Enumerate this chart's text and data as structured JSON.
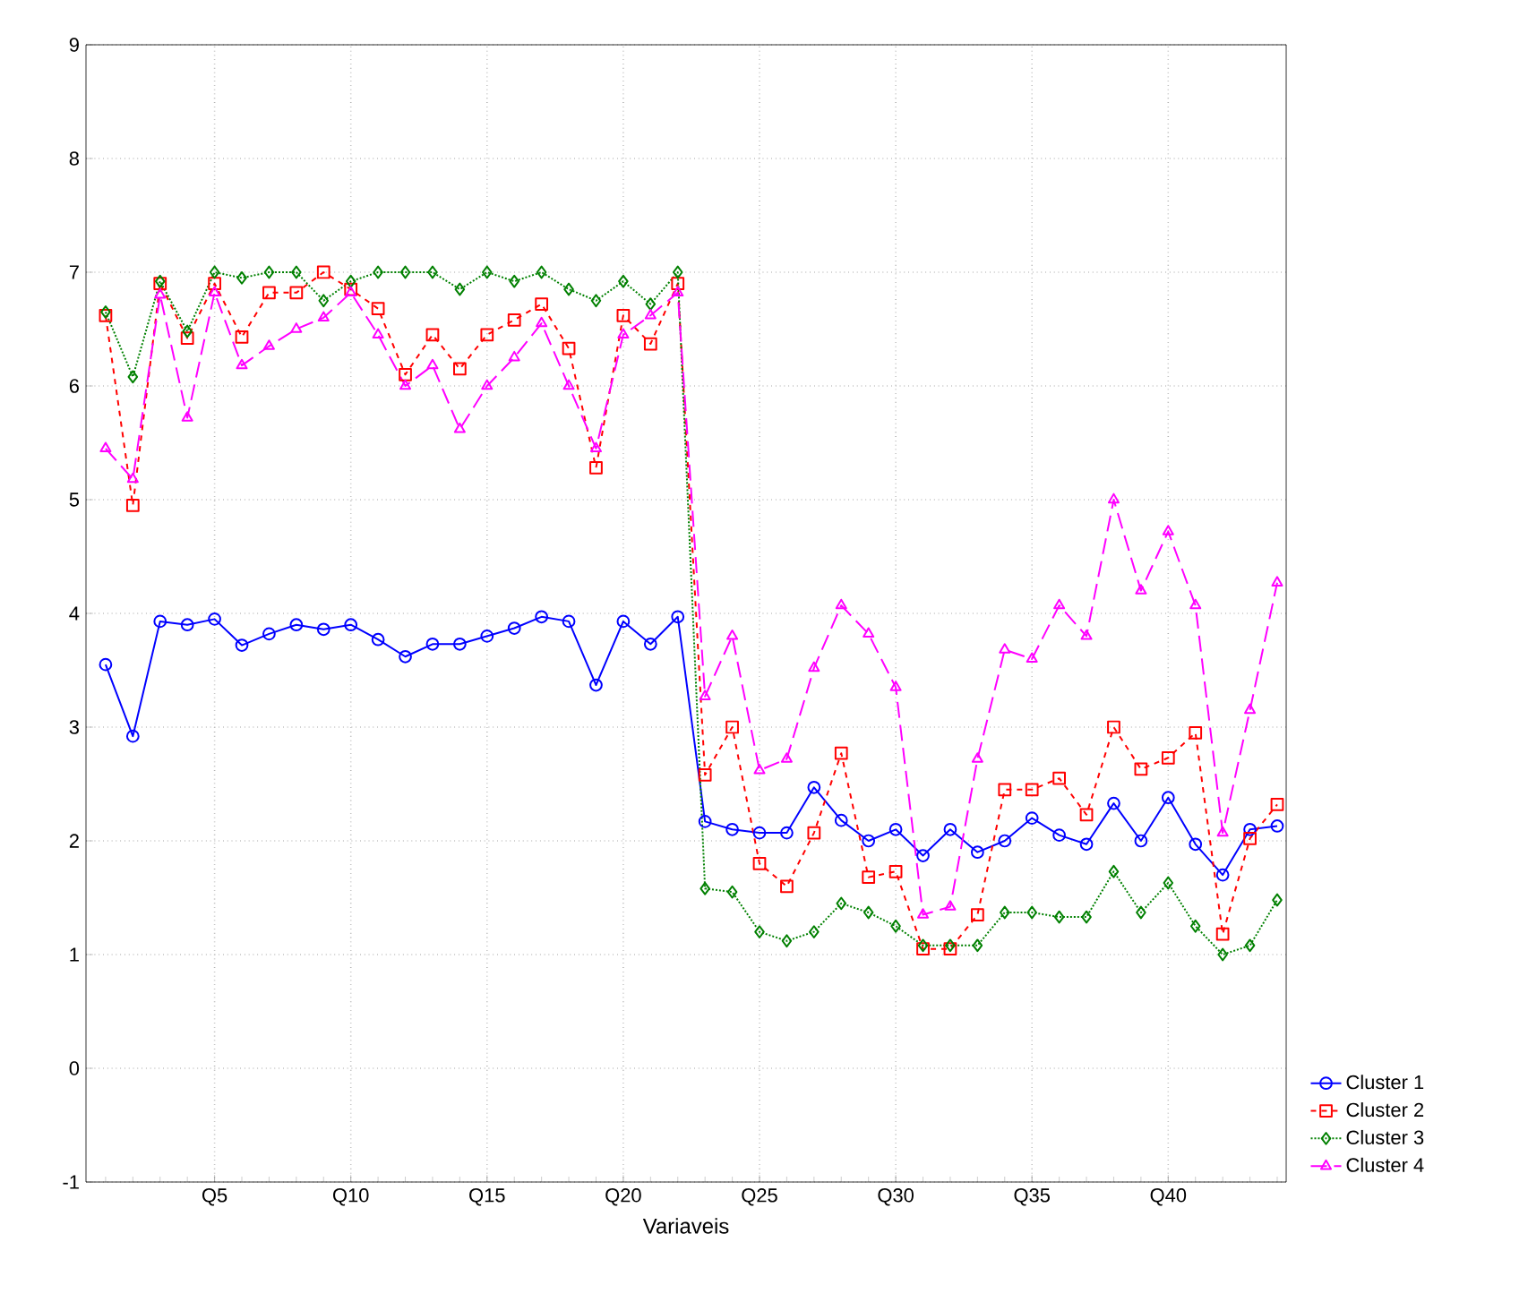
{
  "chart_data": {
    "type": "line",
    "xlabel": "Variaveis",
    "categories": [
      null,
      null,
      null,
      null,
      "Q5",
      null,
      null,
      null,
      null,
      "Q10",
      null,
      null,
      null,
      null,
      "Q15",
      null,
      null,
      null,
      null,
      "Q20",
      null,
      null,
      null,
      null,
      "Q25",
      null,
      null,
      null,
      null,
      "Q30",
      null,
      null,
      null,
      null,
      "Q35",
      null,
      null,
      null,
      null,
      "Q40",
      null,
      null,
      null,
      null
    ],
    "ylim": [
      -1,
      9
    ],
    "yticks": [
      -1,
      0,
      1,
      2,
      3,
      4,
      5,
      6,
      7,
      8,
      9
    ],
    "grid": true,
    "legend": "bottom right",
    "series": [
      {
        "name": "Cluster  1",
        "color": "#0000ff",
        "marker": "circle",
        "line_style": "solid",
        "values": [
          3.55,
          2.92,
          3.93,
          3.9,
          3.95,
          3.72,
          3.82,
          3.9,
          3.86,
          3.9,
          3.77,
          3.62,
          3.73,
          3.73,
          3.8,
          3.87,
          3.97,
          3.93,
          3.37,
          3.93,
          3.73,
          3.97,
          2.17,
          2.1,
          2.07,
          2.07,
          2.47,
          2.18,
          2.0,
          2.1,
          1.87,
          2.1,
          1.9,
          2.0,
          2.2,
          2.05,
          1.97,
          2.33,
          2.0,
          2.38,
          1.97,
          1.7,
          2.1,
          2.13
        ]
      },
      {
        "name": "Cluster  2",
        "color": "#ff0000",
        "marker": "square",
        "line_style": "dashed",
        "values": [
          6.62,
          4.95,
          6.9,
          6.42,
          6.9,
          6.43,
          6.82,
          6.82,
          7.0,
          6.85,
          6.68,
          6.1,
          6.45,
          6.15,
          6.45,
          6.58,
          6.72,
          6.33,
          5.28,
          6.62,
          6.37,
          6.9,
          2.58,
          3.0,
          1.8,
          1.6,
          2.07,
          2.77,
          1.68,
          1.73,
          1.05,
          1.05,
          1.35,
          2.45,
          2.45,
          2.55,
          2.23,
          3.0,
          2.63,
          2.73,
          2.95,
          1.18,
          2.02,
          2.32
        ]
      },
      {
        "name": "Cluster  3",
        "color": "#008000",
        "marker": "diamond",
        "line_style": "dotted",
        "values": [
          6.65,
          6.08,
          6.92,
          6.48,
          7.0,
          6.95,
          7.0,
          7.0,
          6.75,
          6.92,
          7.0,
          7.0,
          7.0,
          6.85,
          7.0,
          6.92,
          7.0,
          6.85,
          6.75,
          6.92,
          6.72,
          7.0,
          1.58,
          1.55,
          1.2,
          1.12,
          1.2,
          1.45,
          1.37,
          1.25,
          1.08,
          1.08,
          1.08,
          1.37,
          1.37,
          1.33,
          1.33,
          1.73,
          1.37,
          1.63,
          1.25,
          1.0,
          1.08,
          1.48
        ]
      },
      {
        "name": "Cluster  4",
        "color": "#ff00ff",
        "marker": "triangle",
        "line_style": "dashed",
        "values": [
          5.45,
          5.18,
          6.8,
          5.72,
          6.82,
          6.18,
          6.35,
          6.5,
          6.6,
          6.82,
          6.45,
          6.0,
          6.18,
          5.62,
          6.0,
          6.25,
          6.55,
          6.0,
          5.45,
          6.45,
          6.62,
          6.82,
          3.27,
          3.8,
          2.62,
          2.72,
          3.52,
          4.07,
          3.82,
          3.35,
          1.35,
          1.42,
          2.72,
          3.68,
          3.6,
          4.07,
          3.8,
          5.0,
          4.2,
          4.72,
          4.07,
          2.07,
          3.15,
          4.27
        ]
      }
    ]
  }
}
